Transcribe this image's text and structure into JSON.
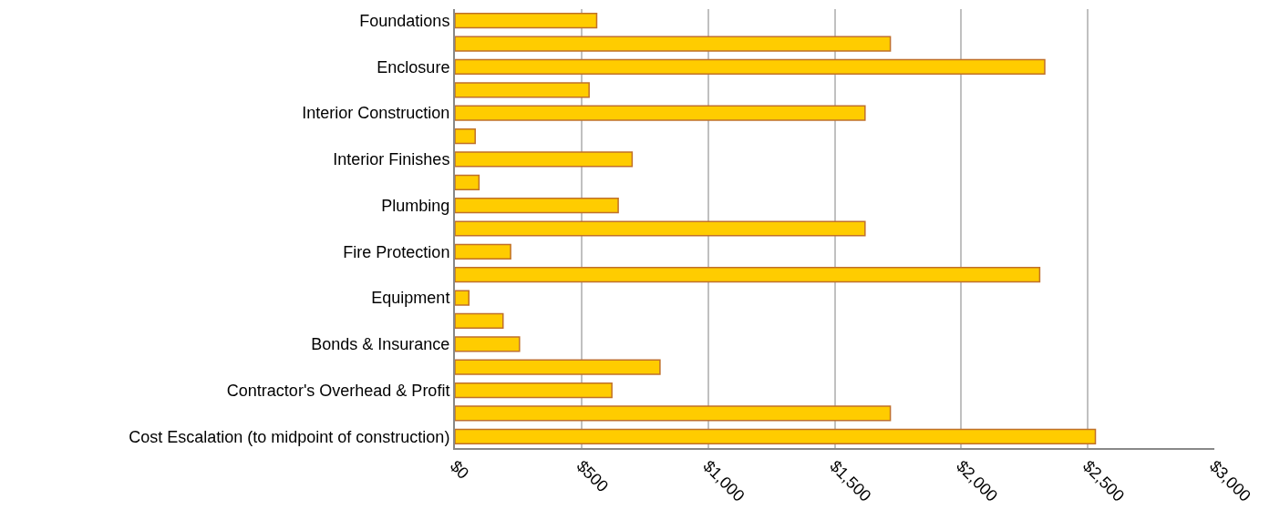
{
  "chart_data": {
    "type": "bar",
    "orientation": "horizontal",
    "categories": [
      "Foundations",
      null,
      "Enclosure",
      null,
      "Interior Construction",
      null,
      "Interior Finishes",
      null,
      "Plumbing",
      null,
      "Fire Protection",
      null,
      "Equipment",
      null,
      "Bonds & Insurance",
      null,
      "Contractor's Overhead & Profit",
      null,
      "Cost Escalation (to midpoint of construction)"
    ],
    "values": [
      560,
      1720,
      2330,
      530,
      1620,
      80,
      700,
      95,
      645,
      1620,
      220,
      2310,
      55,
      190,
      255,
      810,
      620,
      1720,
      2530
    ],
    "color": "#ffcc00",
    "xlim": [
      0,
      3000
    ],
    "xticks": [
      {
        "value": 0,
        "label": "$0"
      },
      {
        "value": 500,
        "label": "$500"
      },
      {
        "value": 1000,
        "label": "$1,000"
      },
      {
        "value": 1500,
        "label": "$1,500"
      },
      {
        "value": 2000,
        "label": "$2,000"
      },
      {
        "value": 2500,
        "label": "$2,500"
      },
      {
        "value": 3000,
        "label": "$3,000"
      }
    ],
    "grid": "x"
  }
}
